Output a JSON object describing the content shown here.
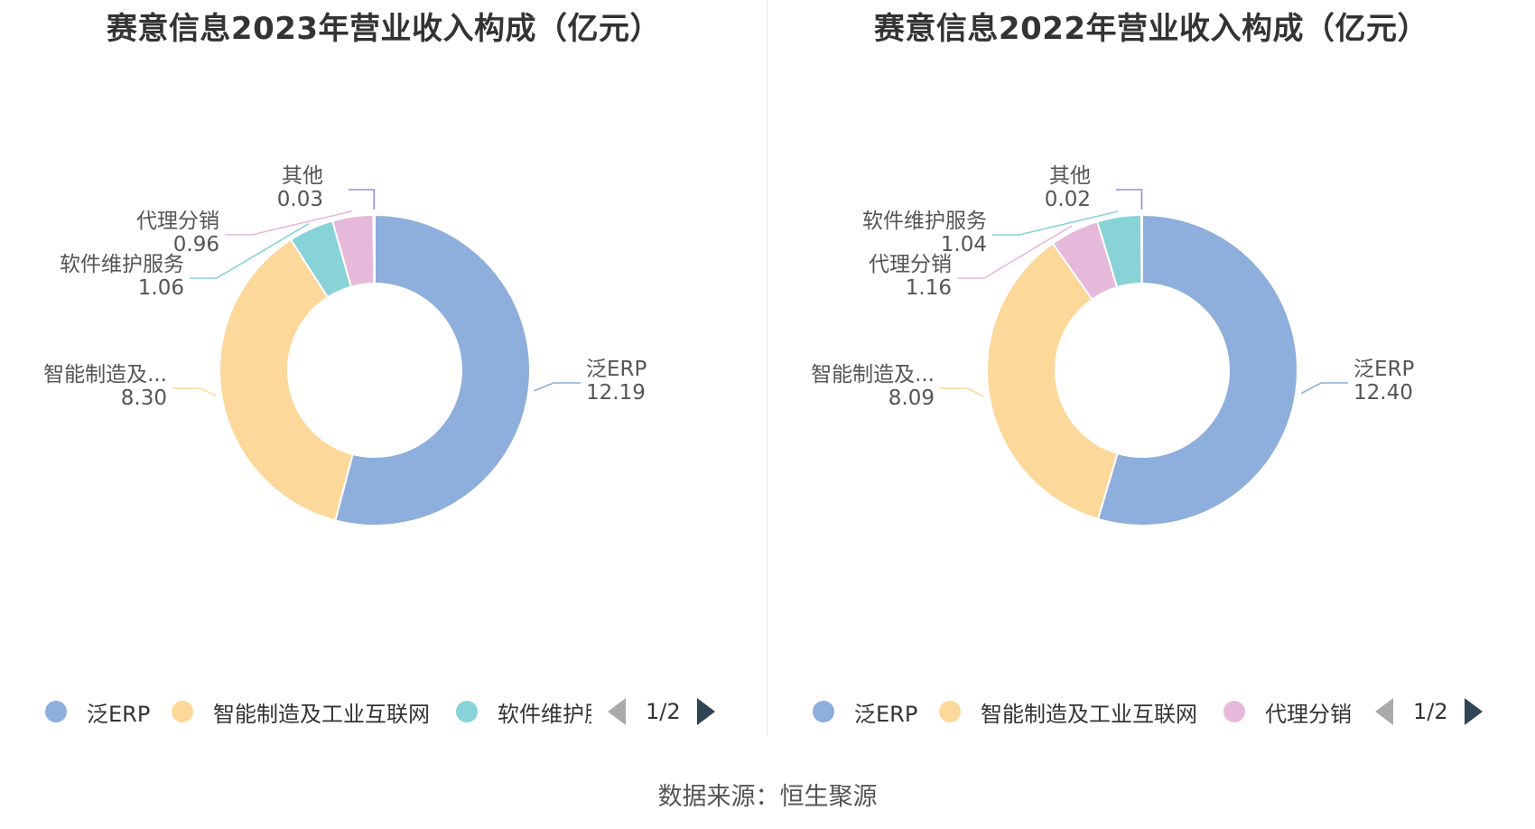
{
  "colors": {
    "erp": "#8eaedb",
    "manufacturing": "#fdd89b",
    "software": "#87d3d7",
    "distribution": "#e6b9da",
    "other": "#8b8fe8"
  },
  "source": "数据来源：恒生聚源",
  "chart_data": [
    {
      "type": "pie",
      "donut": true,
      "title": "赛意信息2023年营业收入构成（亿元）",
      "series": [
        {
          "name": "泛ERP",
          "label": "泛ERP",
          "value": 12.19,
          "value_text": "12.19",
          "color_key": "erp"
        },
        {
          "name": "智能制造及工业互联网",
          "label": "智能制造及...",
          "value": 8.3,
          "value_text": "8.30",
          "color_key": "manufacturing"
        },
        {
          "name": "软件维护服务",
          "label": "软件维护服务",
          "value": 1.06,
          "value_text": "1.06",
          "color_key": "software"
        },
        {
          "name": "代理分销",
          "label": "代理分销",
          "value": 0.96,
          "value_text": "0.96",
          "color_key": "distribution"
        },
        {
          "name": "其他",
          "label": "其他",
          "value": 0.03,
          "value_text": "0.03",
          "color_key": "other"
        }
      ],
      "legend": {
        "position": "bottom",
        "items": [
          {
            "label": "泛ERP",
            "color_key": "erp"
          },
          {
            "label": "智能制造及工业互联网",
            "color_key": "manufacturing"
          },
          {
            "label": "软件维护服务",
            "color_key": "software"
          }
        ],
        "page": "1/2"
      }
    },
    {
      "type": "pie",
      "donut": true,
      "title": "赛意信息2022年营业收入构成（亿元）",
      "series": [
        {
          "name": "泛ERP",
          "label": "泛ERP",
          "value": 12.4,
          "value_text": "12.40",
          "color_key": "erp"
        },
        {
          "name": "智能制造及工业互联网",
          "label": "智能制造及...",
          "value": 8.09,
          "value_text": "8.09",
          "color_key": "manufacturing"
        },
        {
          "name": "代理分销",
          "label": "代理分销",
          "value": 1.16,
          "value_text": "1.16",
          "color_key": "distribution"
        },
        {
          "name": "软件维护服务",
          "label": "软件维护服务",
          "value": 1.04,
          "value_text": "1.04",
          "color_key": "software"
        },
        {
          "name": "其他",
          "label": "其他",
          "value": 0.02,
          "value_text": "0.02",
          "color_key": "other"
        }
      ],
      "legend": {
        "position": "bottom",
        "items": [
          {
            "label": "泛ERP",
            "color_key": "erp"
          },
          {
            "label": "智能制造及工业互联网",
            "color_key": "manufacturing"
          },
          {
            "label": "代理分销",
            "color_key": "distribution"
          }
        ],
        "page": "1/2"
      }
    }
  ]
}
